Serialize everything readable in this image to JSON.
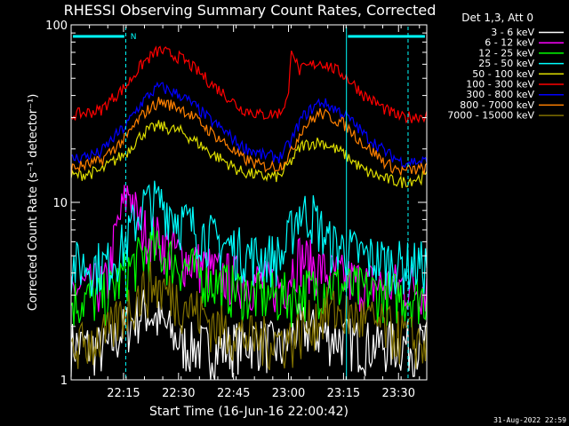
{
  "chart_data": {
    "type": "line",
    "title": "RHESSI Observing Summary Count Rates, Corrected",
    "xlabel": "Start Time (16-Jun-16 22:00:42)",
    "ylabel": "Corrected Count Rate (s⁻¹ detector⁻¹)",
    "yscale": "log",
    "ylim": [
      1,
      100
    ],
    "xlim_minutes": [
      0,
      97
    ],
    "x_ticks": [
      "22:15",
      "22:30",
      "22:45",
      "23:00",
      "23:15",
      "23:30"
    ],
    "x_tick_minutes": [
      14.3,
      29.3,
      44.3,
      59.3,
      74.3,
      89.3
    ],
    "y_ticks": [
      "1",
      "10",
      "100"
    ],
    "legend_header": "Det 1,3, Att 0",
    "legend_position": "right",
    "annotation": "N",
    "footer_date": "31-Aug-2022 22:59",
    "series": [
      {
        "name": "3 - 6 keV",
        "color": "#ffffff",
        "x": [
          0,
          10,
          17,
          20,
          30,
          40,
          50,
          58,
          62,
          70,
          80,
          90,
          97
        ],
        "values": [
          1.6,
          1.5,
          2.2,
          2.5,
          1.6,
          1.5,
          1.7,
          1.5,
          2.0,
          1.8,
          1.6,
          1.6,
          1.6
        ]
      },
      {
        "name": "6 - 12 keV",
        "color": "#ff00ff",
        "x": [
          0,
          10,
          16,
          18,
          20,
          25,
          30,
          40,
          50,
          58,
          62,
          70,
          80,
          90,
          97
        ],
        "values": [
          3.2,
          3.5,
          12,
          8,
          7,
          6,
          5,
          4,
          3.6,
          3.4,
          5,
          4,
          3.5,
          3.4,
          3.4
        ]
      },
      {
        "name": "12 - 25 keV",
        "color": "#00ff00",
        "x": [
          0,
          10,
          17,
          22,
          30,
          40,
          50,
          60,
          70,
          80,
          90,
          97
        ],
        "values": [
          2.8,
          3.0,
          4.5,
          5.5,
          4.5,
          3.5,
          3.0,
          3.0,
          3.5,
          3.2,
          3.0,
          3.0
        ]
      },
      {
        "name": "25 - 50 keV",
        "color": "#00ffff",
        "x": [
          0,
          10,
          15,
          20,
          25,
          30,
          40,
          50,
          58,
          62,
          66,
          70,
          80,
          90,
          97
        ],
        "values": [
          4.5,
          4.5,
          6,
          10,
          10,
          8,
          6,
          5,
          5,
          9,
          8.5,
          6,
          5,
          4.5,
          4.5
        ]
      },
      {
        "name": "50 - 100 keV",
        "color": "#dddd00",
        "x": [
          0,
          8,
          15,
          20,
          24,
          30,
          38,
          46,
          52,
          57,
          60,
          63,
          68,
          74,
          80,
          86,
          90,
          97
        ],
        "values": [
          14,
          15,
          19,
          25,
          27,
          25,
          19,
          15,
          14,
          14,
          17,
          21,
          22,
          19,
          15,
          13.5,
          13,
          14
        ]
      },
      {
        "name": "100 - 300 keV",
        "color": "#ff0000",
        "x": [
          0,
          8,
          15,
          20,
          24,
          30,
          38,
          46,
          52,
          57,
          59.5,
          60,
          62,
          68,
          74,
          80,
          86,
          90,
          97
        ],
        "values": [
          31,
          33,
          45,
          62,
          72,
          65,
          47,
          34,
          31,
          32,
          40,
          78,
          55,
          62,
          53,
          40,
          33,
          30,
          31
        ]
      },
      {
        "name": "300 - 800 keV",
        "color": "#0000ff",
        "x": [
          0,
          8,
          15,
          20,
          24,
          30,
          38,
          46,
          52,
          57,
          60,
          63,
          68,
          74,
          80,
          86,
          90,
          97
        ],
        "values": [
          17.5,
          19,
          27,
          38,
          45,
          40,
          29,
          21,
          18.5,
          18,
          22,
          30,
          37,
          32,
          24,
          19,
          17,
          17
        ]
      },
      {
        "name": "800 - 7000 keV",
        "color": "#ff8000",
        "x": [
          0,
          8,
          15,
          20,
          24,
          30,
          38,
          46,
          52,
          57,
          60,
          63,
          68,
          74,
          80,
          86,
          90,
          97
        ],
        "values": [
          15.5,
          17,
          23,
          32,
          37,
          34,
          25,
          18,
          16,
          16,
          19,
          26,
          32,
          28,
          21,
          16.5,
          15,
          15.5
        ]
      },
      {
        "name": "7000 - 15000 keV",
        "color": "#807000",
        "x": [
          0,
          10,
          17,
          22,
          30,
          40,
          50,
          60,
          70,
          80,
          90,
          97
        ],
        "values": [
          1.5,
          1.8,
          2.8,
          3.5,
          2.8,
          2.0,
          1.7,
          1.7,
          2.5,
          2.2,
          1.8,
          1.6
        ]
      }
    ]
  }
}
